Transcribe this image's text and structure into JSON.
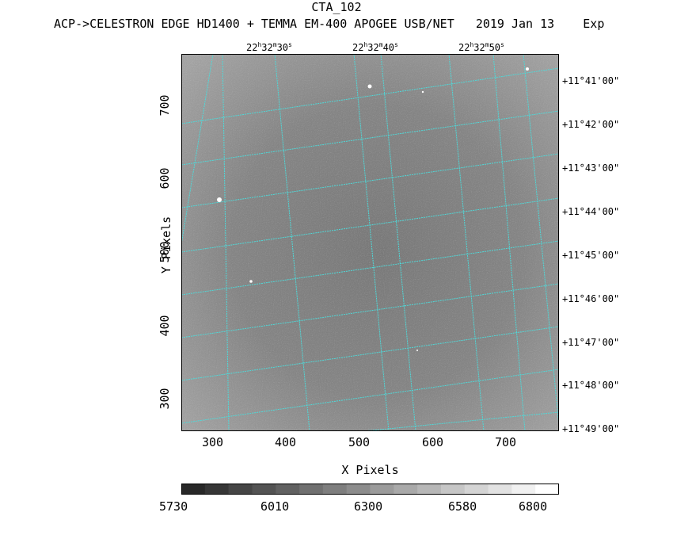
{
  "header": {
    "title": "CTA_102",
    "subtitle": "ACP->CELESTRON EDGE HD1400 + TEMMA EM-400 APOGEE USB/NET   2019 Jan 13    Exp"
  },
  "axes": {
    "xlabel": "X Pixels",
    "ylabel": "Y Pixels",
    "x_ticks": [
      "300",
      "400",
      "500",
      "600",
      "700"
    ],
    "y_ticks": [
      "300",
      "400",
      "500",
      "600",
      "700"
    ],
    "ra_labels": [
      {
        "h": "22",
        "m": "32",
        "s": "30"
      },
      {
        "h": "22",
        "m": "32",
        "s": "40"
      },
      {
        "h": "22",
        "m": "32",
        "s": "50"
      }
    ],
    "dec_labels": [
      "+11°41'00\"",
      "+11°42'00\"",
      "+11°43'00\"",
      "+11°44'00\"",
      "+11°45'00\"",
      "+11°46'00\"",
      "+11°47'00\"",
      "+11°48'00\"",
      "+11°49'00\""
    ]
  },
  "colorbar": {
    "labels": [
      "5730",
      "6010",
      "6300",
      "6580",
      "6800"
    ],
    "min": 5730,
    "max": 6800
  },
  "colors": {
    "grid": "#4fd8d8",
    "image_base": "#858585"
  }
}
